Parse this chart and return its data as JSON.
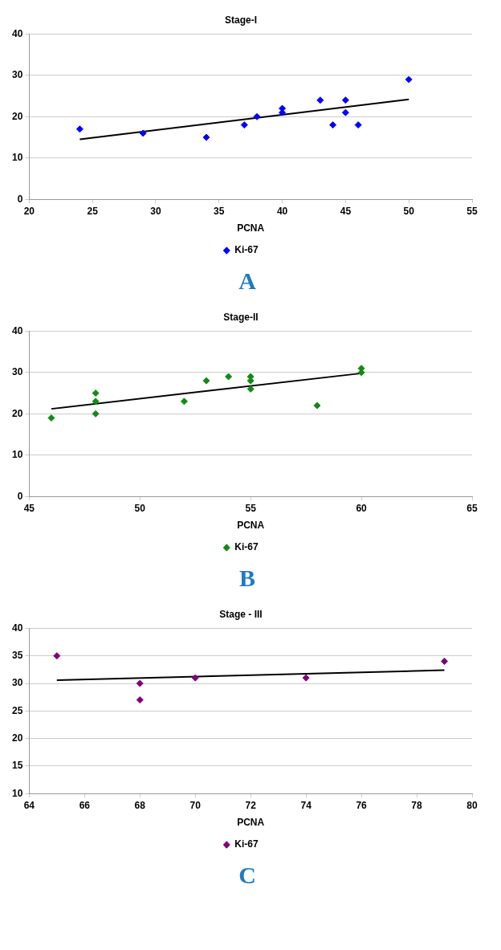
{
  "chart_data": [
    {
      "type": "scatter",
      "title": "Stage-I",
      "xlabel": "PCNA",
      "xlim": [
        20,
        55
      ],
      "xticks": [
        20,
        25,
        30,
        35,
        40,
        45,
        50,
        55
      ],
      "ylim": [
        0,
        40
      ],
      "yticks": [
        0,
        10,
        20,
        30,
        40
      ],
      "grid": "y",
      "legend": "bottom",
      "marker": "diamond",
      "annotations": [
        "A"
      ],
      "series": [
        {
          "name": "Ki-67",
          "color": "#0000ff",
          "x": [
            24,
            29,
            34,
            37,
            38,
            40,
            40,
            43,
            44,
            45,
            45,
            46,
            50
          ],
          "values": [
            17,
            16,
            15,
            18,
            20,
            22,
            21,
            24,
            18,
            24,
            21,
            18,
            29
          ]
        },
        {
          "type": "line",
          "color": "#000000",
          "marker": "none",
          "x": [
            24,
            50
          ],
          "values": [
            14.5,
            24.2
          ]
        }
      ]
    },
    {
      "type": "scatter",
      "title": "Stage-II",
      "xlabel": "PCNA",
      "xlim": [
        45,
        65
      ],
      "xticks": [
        45,
        50,
        55,
        60,
        65
      ],
      "ylim": [
        0,
        40
      ],
      "yticks": [
        0,
        10,
        20,
        30,
        40
      ],
      "grid": "y",
      "legend": "bottom",
      "marker": "diamond",
      "annotations": [
        "B"
      ],
      "series": [
        {
          "name": "Ki-67",
          "color": "#138a13",
          "x": [
            46,
            48,
            48,
            48,
            52,
            53,
            54,
            55,
            55,
            55,
            58,
            60,
            60
          ],
          "values": [
            19,
            25,
            23,
            20,
            23,
            28,
            29,
            29,
            28,
            26,
            22,
            31,
            30
          ]
        },
        {
          "type": "line",
          "color": "#000000",
          "marker": "none",
          "x": [
            46,
            60
          ],
          "values": [
            21.2,
            29.8
          ]
        }
      ]
    },
    {
      "type": "scatter",
      "title": "Stage - III",
      "xlabel": "PCNA",
      "xlim": [
        64,
        80
      ],
      "xticks": [
        64,
        66,
        68,
        70,
        72,
        74,
        76,
        78,
        80
      ],
      "ylim": [
        10,
        40
      ],
      "yticks": [
        10,
        15,
        20,
        25,
        30,
        35,
        40
      ],
      "grid": "y",
      "legend": "bottom",
      "marker": "diamond",
      "annotations": [
        "C"
      ],
      "series": [
        {
          "name": "Ki-67",
          "color": "#800080",
          "x": [
            65,
            68,
            68,
            70,
            74,
            79
          ],
          "values": [
            35,
            30,
            27,
            31,
            31,
            34
          ]
        },
        {
          "type": "line",
          "color": "#000000",
          "marker": "none",
          "x": [
            65,
            79
          ],
          "values": [
            30.6,
            32.4
          ]
        }
      ]
    }
  ]
}
